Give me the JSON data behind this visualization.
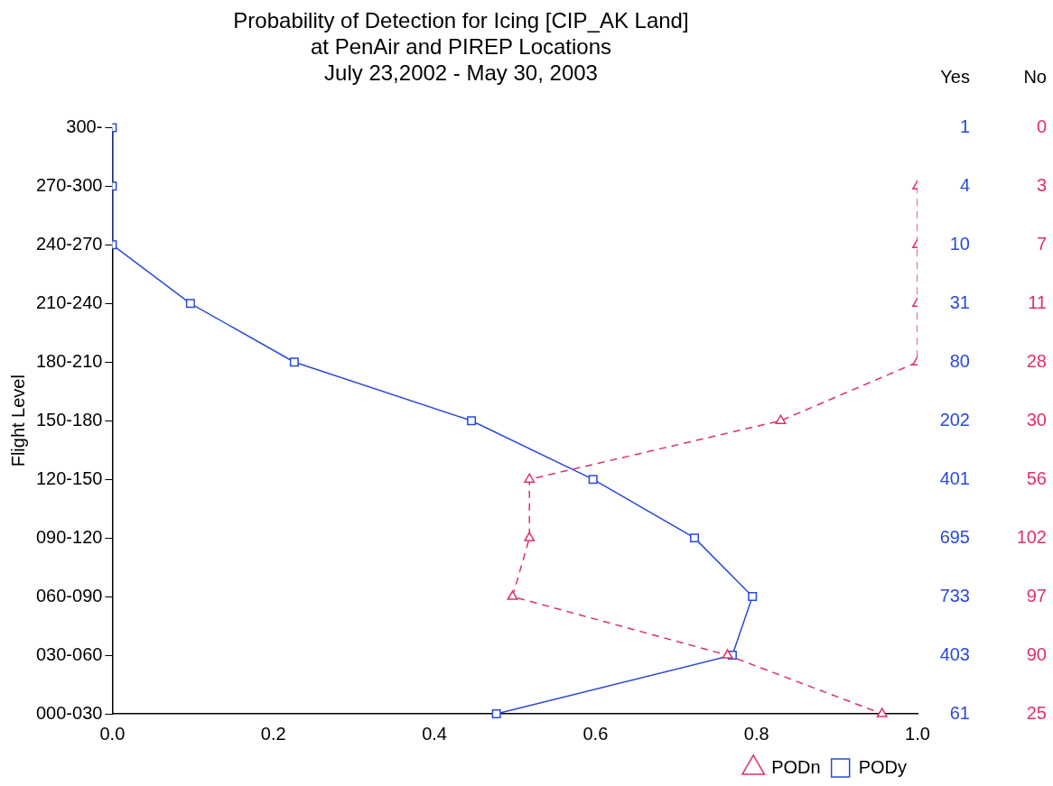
{
  "chart_data": {
    "type": "line",
    "orientation": "horizontal",
    "title": "Probability of Detection for Icing [CIP_AK Land]\nat PenAir and PIREP Locations\nJuly 23,2002 - May 30, 2003",
    "ylabel": "Flight Level",
    "categories": [
      "300-",
      "270-300",
      "240-270",
      "210-240",
      "180-210",
      "150-180",
      "120-150",
      "090-120",
      "060-090",
      "030-060",
      "000-030"
    ],
    "xlim": [
      0,
      1
    ],
    "xticks": [
      {
        "value": 0,
        "label": "0.0"
      },
      {
        "value": 0.2,
        "label": "0.2"
      },
      {
        "value": 0.4,
        "label": "0.4"
      },
      {
        "value": 0.6,
        "label": "0.6"
      },
      {
        "value": 0.8,
        "label": "0.8"
      },
      {
        "value": 1,
        "label": "1.0"
      }
    ],
    "grid": false,
    "legend": "bottom right",
    "series": [
      {
        "name": "PODy",
        "color": "#2a4ad8",
        "marker": "square",
        "line_style": "solid",
        "values": [
          0,
          0,
          0,
          0.097,
          0.226,
          0.446,
          0.597,
          0.723,
          0.795,
          0.77,
          0.477
        ]
      },
      {
        "name": "PODn",
        "color": "#e0306a",
        "marker": "triangle",
        "line_style": "dashed",
        "values": [
          null,
          1,
          1,
          1,
          1,
          0.83,
          0.518,
          0.518,
          0.497,
          0.764,
          0.956
        ]
      }
    ],
    "annotations": [
      "Yes",
      "No",
      "1",
      "0",
      "4",
      "3",
      "10",
      "7",
      "31",
      "11",
      "80",
      "28",
      "202",
      "30",
      "401",
      "56",
      "695",
      "102",
      "733",
      "97",
      "403",
      "90",
      "61",
      "25"
    ]
  }
}
